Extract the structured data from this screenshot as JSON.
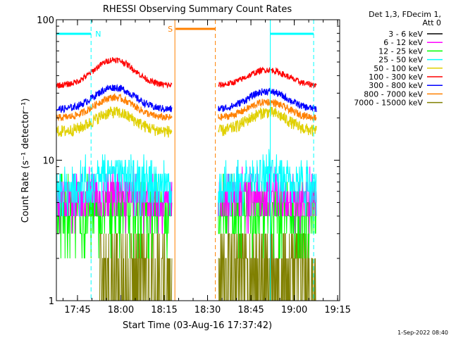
{
  "chart_data": {
    "type": "line",
    "title": "RHESSI Observing Summary Count Rates",
    "xlabel": "Start Time (03-Aug-16 17:37:42)",
    "ylabel": "Count Rate (s⁻¹ detector⁻¹)",
    "yscale": "log",
    "ylim": [
      1,
      100
    ],
    "xlim_minutes": [
      0,
      98
    ],
    "x_tick_labels": [
      "17:45",
      "18:00",
      "18:15",
      "18:30",
      "18:45",
      "19:00",
      "19:15"
    ],
    "y_tick_labels": [
      "1",
      "10",
      "100"
    ],
    "legend_header": [
      "Det 1,3, FDecim 1,",
      "Att 0"
    ],
    "legend_placement": "right",
    "footer_date": "1-Sep-2022 08:40",
    "segments": [
      [
        0,
        40
      ],
      [
        56,
        90
      ]
    ],
    "series": [
      {
        "name": "3 - 6 keV",
        "color": "#000000",
        "base": [
          0,
          0
        ],
        "peak": [
          0,
          0
        ],
        "noise": 0
      },
      {
        "name": "6 - 12 keV",
        "color": "#ff00ff",
        "base": [
          5,
          5
        ],
        "peak": [
          5.5,
          5.5
        ],
        "noise": 0.15
      },
      {
        "name": "12 - 25 keV",
        "color": "#00ff00",
        "base": [
          4,
          4
        ],
        "peak": [
          4.2,
          4.2
        ],
        "noise": 0.25
      },
      {
        "name": "25 - 50 keV",
        "color": "#00ffff",
        "base": [
          6,
          6
        ],
        "peak": [
          8,
          8
        ],
        "noise": 0.2
      },
      {
        "name": "50 - 100 keV",
        "color": "#e0d000",
        "base": [
          16,
          16
        ],
        "peak": [
          22,
          22
        ],
        "noise": 0.1
      },
      {
        "name": "100 - 300 keV",
        "color": "#ff0000",
        "base": [
          34,
          34
        ],
        "peak": [
          52,
          44
        ],
        "noise": 0.05
      },
      {
        "name": "300 - 800 keV",
        "color": "#0000ff",
        "base": [
          23,
          23
        ],
        "peak": [
          33,
          31
        ],
        "noise": 0.06
      },
      {
        "name": "800 - 7000 keV",
        "color": "#ff8000",
        "base": [
          20,
          20
        ],
        "peak": [
          28,
          26
        ],
        "noise": 0.06
      },
      {
        "name": "7000 - 15000 keV",
        "color": "#808000",
        "base": [
          1.5,
          1.5
        ],
        "peak": [
          1.5,
          1.5
        ],
        "noise": 0.4
      }
    ],
    "flags": [
      {
        "label": "N",
        "color": "#00ffff",
        "start": 0,
        "end": 12
      },
      {
        "label": "S",
        "color": "#ff8000",
        "start": 41,
        "end": 55
      },
      {
        "label": "",
        "color": "#00ffff",
        "start": 74,
        "end": 89
      }
    ]
  }
}
